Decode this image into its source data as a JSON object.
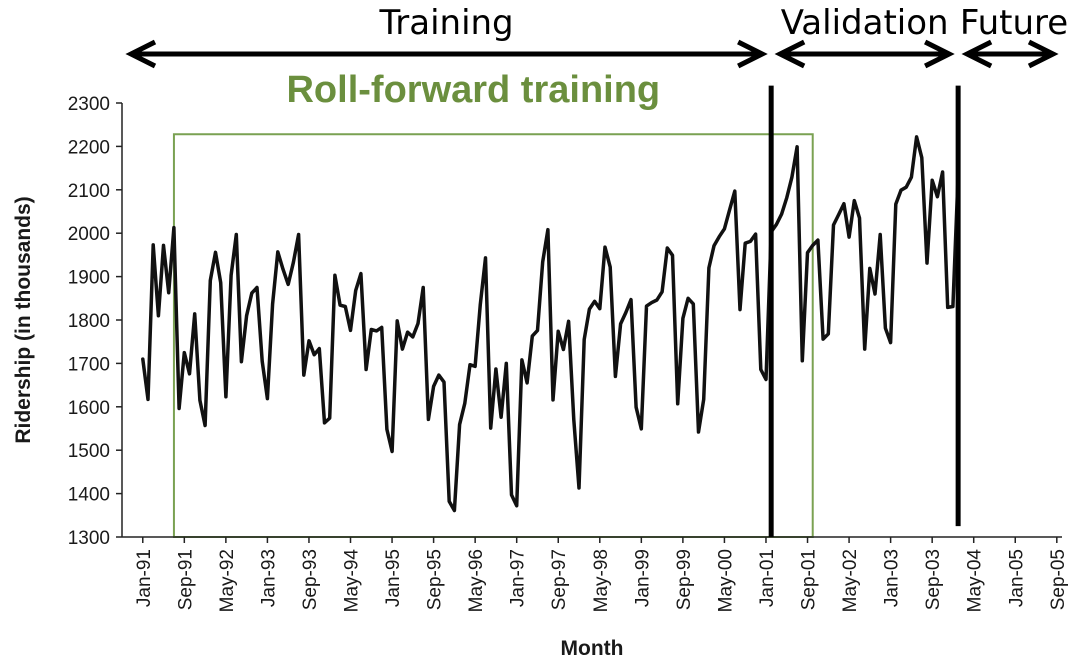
{
  "chart_data": {
    "type": "line",
    "title": "",
    "xlabel": "Month",
    "ylabel": "Ridership (in thousands)",
    "ylim": [
      1300,
      2300
    ],
    "yticks": [
      "1300",
      "1400",
      "1500",
      "1600",
      "1700",
      "1800",
      "1900",
      "2000",
      "2100",
      "2200",
      "2300"
    ],
    "xlim_months_from_jan91": [
      -4,
      177
    ],
    "xtick_labels": [
      "Jan-91",
      "Sep-91",
      "May-92",
      "Jan-93",
      "Sep-93",
      "May-94",
      "Jan-95",
      "Sep-95",
      "May-96",
      "Jan-97",
      "Sep-97",
      "May-98",
      "Jan-99",
      "Sep-99",
      "May-00",
      "Jan-01",
      "Sep-01",
      "May-02",
      "Jan-03",
      "Sep-03",
      "May-04",
      "Jan-05",
      "Sep-05"
    ],
    "grid": false,
    "line_color": "#111111",
    "series": [
      {
        "x_start": "Jan-91",
        "values": [
          1710,
          1617,
          1973,
          1810,
          1972,
          1863,
          2013,
          1596,
          1725,
          1676,
          1814,
          1615,
          1557,
          1891,
          1956,
          1886,
          1623,
          1903,
          1997,
          1704,
          1810,
          1862,
          1875,
          1705,
          1619,
          1837,
          1957,
          1917,
          1882,
          1933,
          1997,
          1673,
          1752,
          1720,
          1734,
          1563,
          1574,
          1903,
          1834,
          1831,
          1776,
          1868,
          1907,
          1686,
          1778,
          1775,
          1783,
          1548,
          1497,
          1798,
          1733,
          1772,
          1761,
          1792,
          1875,
          1571,
          1647,
          1673,
          1657,
          1382,
          1361,
          1559,
          1608,
          1697,
          1693,
          1836,
          1943,
          1551,
          1687,
          1576,
          1700,
          1397,
          1372,
          1708,
          1655,
          1763,
          1776,
          1934,
          2008,
          1616,
          1774,
          1732,
          1797,
          1570,
          1413,
          1755,
          1825,
          1843,
          1826,
          1968,
          1922,
          1670,
          1791,
          1817,
          1847,
          1599,
          1549,
          1832,
          1840,
          1846,
          1865,
          1966,
          1949,
          1607,
          1804,
          1850,
          1837,
          1542,
          1617,
          1920,
          1971,
          1992,
          2010,
          2054,
          2097,
          1824,
          1977,
          1981,
          1998,
          1686,
          1663,
          2003,
          2020,
          2044,
          2082,
          2129,
          2199,
          1706,
          1955,
          1972,
          1984,
          1756,
          1768,
          2019,
          2043,
          2068,
          1991,
          2075,
          2035,
          1733,
          1919,
          1860,
          1997,
          1781,
          1748,
          2067,
          2099,
          2106,
          2129,
          2222,
          2174,
          1931,
          2122,
          2084,
          2141,
          1829,
          1831,
          2133
        ]
      }
    ],
    "annotations": {
      "phases": [
        {
          "label": "Training",
          "from_month": -4,
          "to_month": 121
        },
        {
          "label": "Validation",
          "from_month": 121,
          "to_month": 157
        },
        {
          "label": "Future",
          "from_month": 157,
          "to_month": 177
        }
      ],
      "boundaries": [
        {
          "at_month": 121,
          "from_value": 1300,
          "to_value": 2340
        },
        {
          "at_month": 157,
          "from_value": 1325,
          "to_value": 2340
        }
      ],
      "roll_forward": {
        "label": "Roll-forward training",
        "color": "#7aa152",
        "label_color": "#6b8f3e",
        "from_month": 6,
        "to_month": 129,
        "from_value": 1300,
        "to_value": 2228
      }
    }
  }
}
